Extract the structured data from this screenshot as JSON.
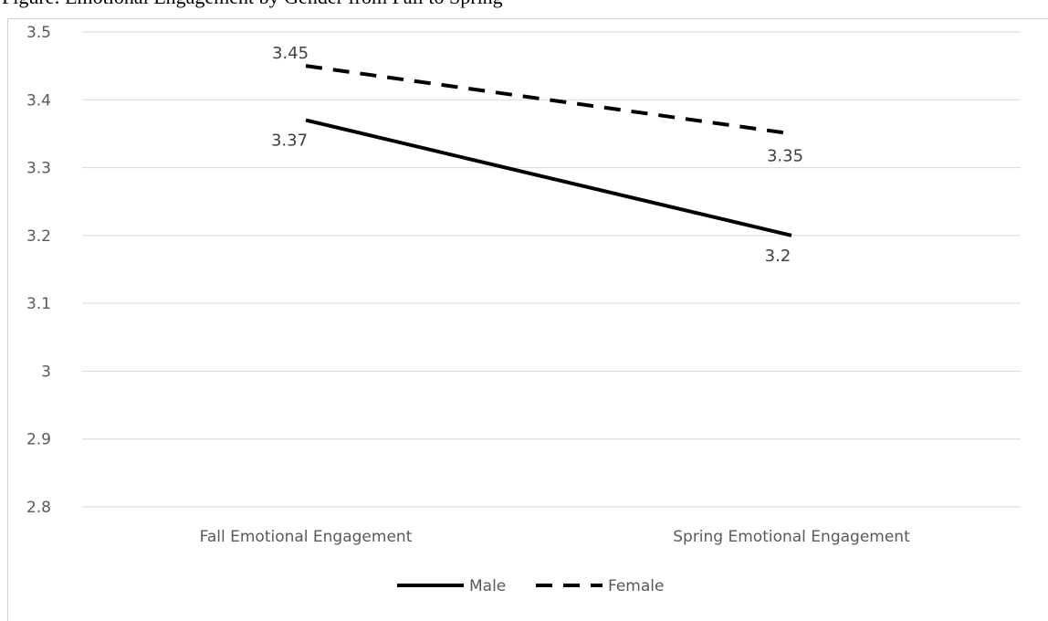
{
  "figure": {
    "caption": "Figure: Emotional Engagement by Gender from Fall to Spring"
  },
  "chart_data": {
    "type": "line",
    "title": "",
    "xlabel": "",
    "ylabel": "",
    "categories": [
      "Fall Emotional Engagement",
      "Spring Emotional Engagement"
    ],
    "ylim": [
      2.8,
      3.5
    ],
    "yticks": [
      "3.5",
      "3.4",
      "3.3",
      "3.2",
      "3.1",
      "3",
      "2.9",
      "2.8"
    ],
    "grid": true,
    "legend_position": "bottom",
    "series": [
      {
        "name": "Male",
        "values": [
          3.37,
          3.2
        ],
        "data_labels": [
          "3.37",
          "3.2"
        ],
        "line_style": "solid",
        "color": "#000000"
      },
      {
        "name": "Female",
        "values": [
          3.45,
          3.35
        ],
        "data_labels": [
          "3.45",
          "3.35"
        ],
        "line_style": "dashed",
        "color": "#000000"
      }
    ]
  },
  "colors": {
    "gridline": "#d9d9d9",
    "tick_text": "#595959",
    "data_label_text": "#404040"
  }
}
